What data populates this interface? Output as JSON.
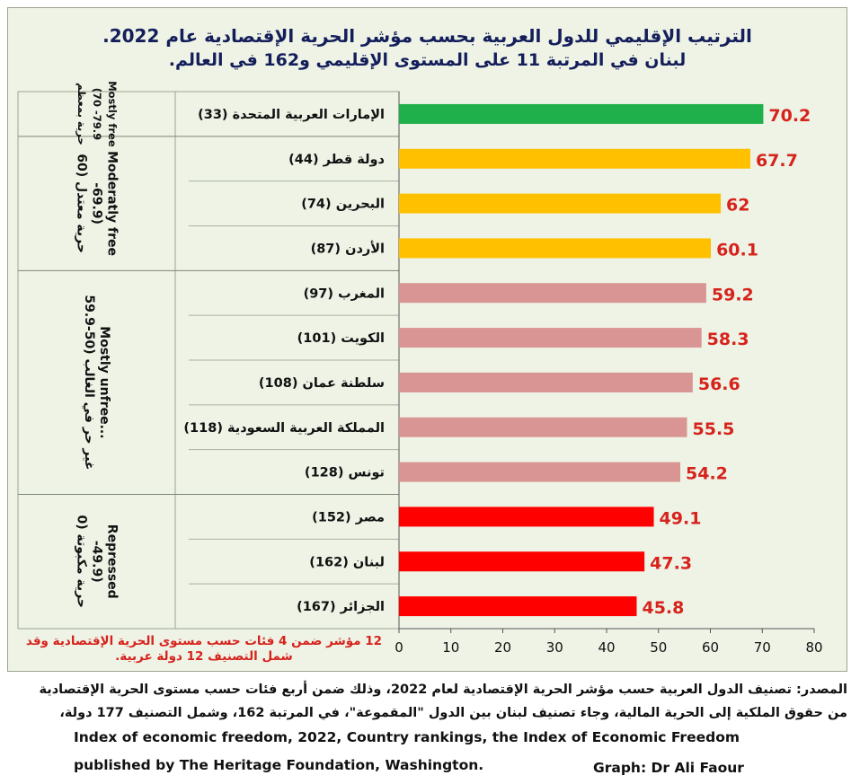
{
  "title": {
    "line1": "الترتيب الإقليمي للدول العربية بحسب مؤشر الحرية الإقتصادية عام 2022.",
    "line2": "لبنان في المرتبة 11 على المستوى الإقليمي و162 في العالم."
  },
  "chart_data": {
    "type": "bar",
    "orientation": "horizontal",
    "xlim": [
      0,
      80
    ],
    "xticks": [
      0,
      10,
      20,
      30,
      40,
      50,
      60,
      70,
      80
    ],
    "grid": false,
    "bars": [
      {
        "label": "الإمارات العربية المتحدة (33)",
        "value": 70.2,
        "value_label": "70.2",
        "color": "#1fb04b"
      },
      {
        "label": "دولة قطر (44)",
        "value": 67.7,
        "value_label": "67.7",
        "color": "#ffc000"
      },
      {
        "label": "البحرين (74)",
        "value": 62,
        "value_label": "62",
        "color": "#ffc000"
      },
      {
        "label": "الأردن (87)",
        "value": 60.1,
        "value_label": "60.1",
        "color": "#ffc000"
      },
      {
        "label": "المغرب (97)",
        "value": 59.2,
        "value_label": "59.2",
        "color": "#d99594"
      },
      {
        "label": "الكويت (101)",
        "value": 58.3,
        "value_label": "58.3",
        "color": "#d99594"
      },
      {
        "label": "سلطنة عمان (108)",
        "value": 56.6,
        "value_label": "56.6",
        "color": "#d99594"
      },
      {
        "label": "المملكة العربية السعودية (118)",
        "value": 55.5,
        "value_label": "55.5",
        "color": "#d99594"
      },
      {
        "label": "تونس (128)",
        "value": 54.2,
        "value_label": "54.2",
        "color": "#d99594"
      },
      {
        "label": "مصر (152)",
        "value": 49.1,
        "value_label": "49.1",
        "color": "#ff0000"
      },
      {
        "label": "لبنان (162)",
        "value": 47.3,
        "value_label": "47.3",
        "color": "#ff0000"
      },
      {
        "label": "الجزائر (167)",
        "value": 45.8,
        "value_label": "45.8",
        "color": "#ff0000"
      }
    ],
    "groups": [
      {
        "start": 0,
        "count": 1,
        "lines": [
          "حرية بمعظم",
          "(70 -79.9",
          "Mostly free"
        ]
      },
      {
        "start": 1,
        "count": 3,
        "lines": [
          "حرية معتدل (60",
          "-69.9)",
          "Moderatly free"
        ]
      },
      {
        "start": 4,
        "count": 5,
        "lines": [
          "غير حر في الغالب (50-59.9",
          "Mostly unfree..."
        ]
      },
      {
        "start": 9,
        "count": 3,
        "lines": [
          "حرية مكبوتة (0",
          "-49.9)",
          "Repressed"
        ]
      }
    ],
    "value_label_color": "#d6231c"
  },
  "footnote": "12 مؤشر ضمن 4 فئات حسب مستوى الحرية الإقتصادية وقد شمل التصنيف 12 دولة عربية.",
  "source": {
    "line1": "المصدر: تصنيف الدول العربية حسب مؤشر الحرية الإقتصادية لعام 2022، وذلك ضمن أربع فئات حسب مستوى الحرية الإقتصادية",
    "line2": "من حقوق الملكية إلى الحرية المالية، وجاء تصنيف لبنان بين الدول \"المقموعة\"، في المرتبة 162، وشمل التصنيف 177 دولة،",
    "line3": "Index of economic freedom, 2022, Country rankings, the Index of Economic Freedom",
    "line4": "published by The Heritage Foundation, Washington.",
    "credit": "Graph: Dr Ali Faour"
  }
}
